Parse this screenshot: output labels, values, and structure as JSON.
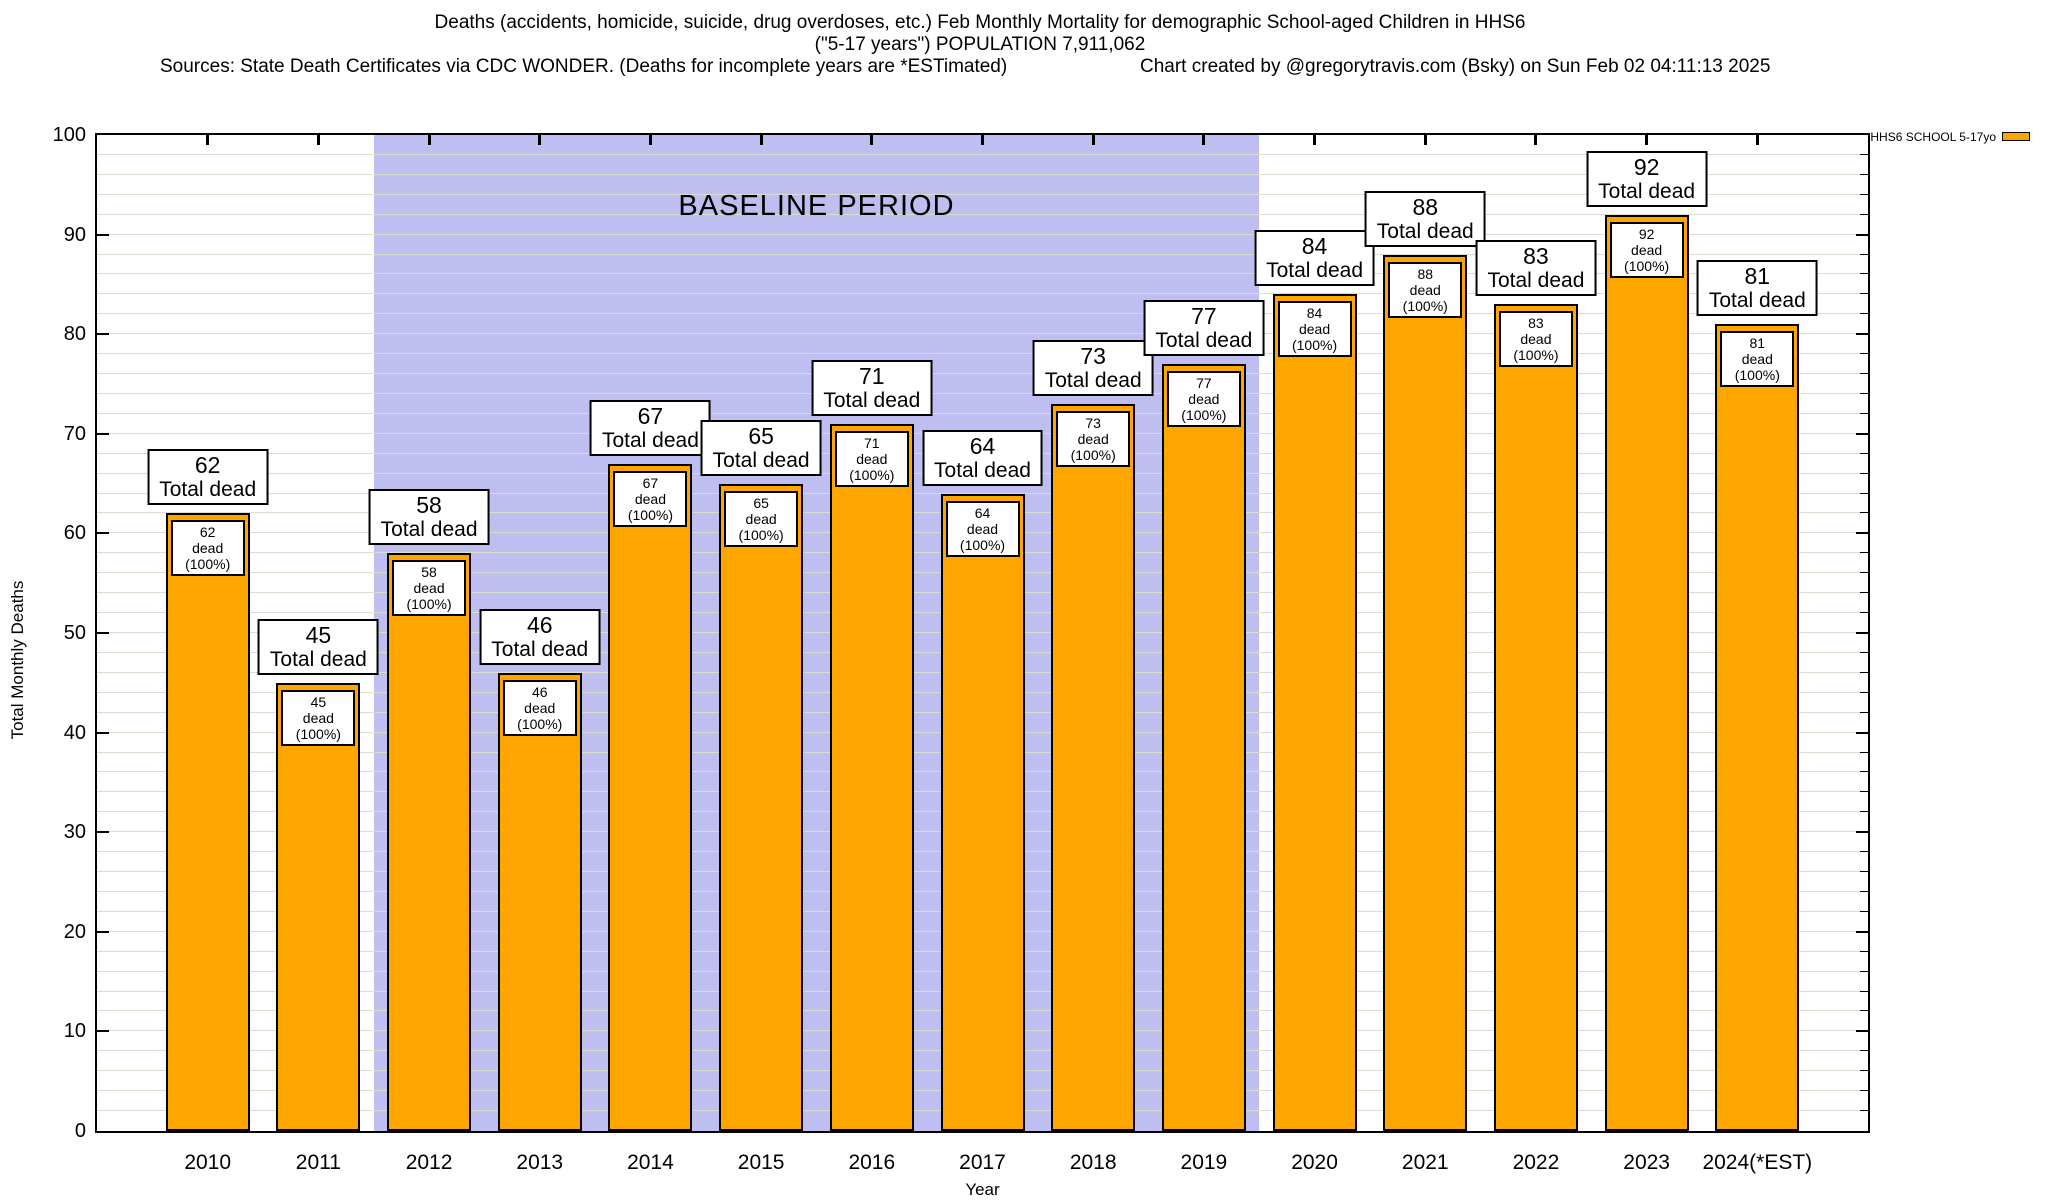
{
  "title": {
    "line1": "Deaths (accidents, homicide, suicide, drug overdoses, etc.) Feb Monthly Mortality for demographic School-aged Children in HHS6",
    "line2": "(\"5-17 years\") POPULATION 7,911,062",
    "sources": "Sources: State Death Certificates via CDC WONDER. (Deaths for incomplete years are *ESTimated)",
    "credit": "Chart created by @gregorytravis.com (Bsky) on Sun Feb 02 04:11:13 2025"
  },
  "legend": {
    "label": "HHS6 SCHOOL 5-17yo",
    "swatch_color": "#ffa500"
  },
  "chart_data": {
    "type": "bar",
    "title": "Feb Monthly Mortality for School-aged Children in HHS6",
    "xlabel": "Year",
    "ylabel": "Total Monthly Deaths",
    "ylim": [
      0,
      100
    ],
    "ytick_step": 10,
    "grid_step": 2,
    "grid_on": true,
    "legend_position": "top-right",
    "categories": [
      "2010",
      "2011",
      "2012",
      "2013",
      "2014",
      "2015",
      "2016",
      "2017",
      "2018",
      "2019",
      "2020",
      "2021",
      "2022",
      "2023",
      "2024(*EST)"
    ],
    "values": [
      62,
      45,
      58,
      46,
      67,
      65,
      71,
      64,
      73,
      77,
      84,
      88,
      83,
      92,
      81
    ],
    "bar_color": "#ffa500",
    "bar_border_color": "#000000",
    "outer_label_suffix": "Total dead",
    "inner_label_suffix": "dead (100%)",
    "baseline_band": {
      "label": "BASELINE PERIOD",
      "start_category": "2012",
      "end_category": "2019",
      "color": "#bebef0"
    }
  }
}
